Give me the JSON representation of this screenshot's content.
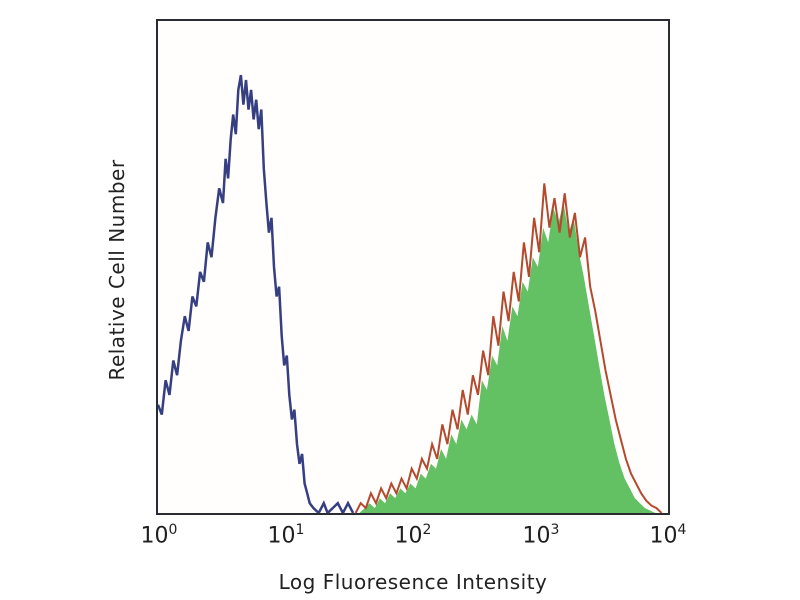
{
  "chart_data": {
    "type": "area",
    "title": "",
    "xlabel": "Log Fluoresence Intensity",
    "ylabel": "Relative Cell Number",
    "x_scale": "log",
    "x_ticks": [
      "10^0",
      "10^1",
      "10^2",
      "10^3",
      "10^4"
    ],
    "x_tick_base": "10",
    "x_tick_exponents": [
      "0",
      "1",
      "2",
      "3",
      "4"
    ],
    "xlim_log10": [
      0,
      4
    ],
    "ylim_fraction": [
      0,
      1
    ],
    "grid": false,
    "legend": "none",
    "series": [
      {
        "name": "stained-sample-fill",
        "style": "area",
        "color": "#63c063",
        "stroke_width": 0,
        "x_log": [
          1.58,
          1.62,
          1.66,
          1.7,
          1.74,
          1.78,
          1.82,
          1.86,
          1.9,
          1.94,
          1.98,
          2.02,
          2.06,
          2.1,
          2.14,
          2.18,
          2.22,
          2.26,
          2.3,
          2.34,
          2.38,
          2.42,
          2.46,
          2.5,
          2.54,
          2.58,
          2.62,
          2.66,
          2.7,
          2.74,
          2.78,
          2.82,
          2.86,
          2.9,
          2.94,
          2.98,
          3.02,
          3.06,
          3.1,
          3.14,
          3.18,
          3.22,
          3.26,
          3.3,
          3.34,
          3.38,
          3.42,
          3.46,
          3.5,
          3.54,
          3.58,
          3.62,
          3.66,
          3.7,
          3.74,
          3.78,
          3.82,
          3.86,
          3.9
        ],
        "y_frac": [
          0.0,
          0.01,
          0.02,
          0.01,
          0.03,
          0.02,
          0.04,
          0.03,
          0.05,
          0.04,
          0.06,
          0.05,
          0.08,
          0.07,
          0.1,
          0.09,
          0.13,
          0.11,
          0.16,
          0.14,
          0.19,
          0.17,
          0.2,
          0.18,
          0.27,
          0.25,
          0.32,
          0.3,
          0.38,
          0.35,
          0.42,
          0.4,
          0.47,
          0.45,
          0.52,
          0.5,
          0.58,
          0.55,
          0.62,
          0.59,
          0.63,
          0.57,
          0.6,
          0.53,
          0.48,
          0.42,
          0.36,
          0.3,
          0.24,
          0.19,
          0.14,
          0.1,
          0.07,
          0.05,
          0.03,
          0.02,
          0.01,
          0.005,
          0.0
        ]
      },
      {
        "name": "stained-sample-outline",
        "style": "line",
        "color": "#b34a2e",
        "stroke_width": 2,
        "x_log": [
          1.55,
          1.59,
          1.63,
          1.67,
          1.71,
          1.75,
          1.79,
          1.83,
          1.87,
          1.91,
          1.95,
          1.99,
          2.03,
          2.07,
          2.11,
          2.15,
          2.19,
          2.23,
          2.27,
          2.31,
          2.35,
          2.39,
          2.43,
          2.47,
          2.51,
          2.55,
          2.59,
          2.63,
          2.67,
          2.71,
          2.75,
          2.79,
          2.83,
          2.87,
          2.91,
          2.95,
          2.99,
          3.03,
          3.07,
          3.11,
          3.15,
          3.19,
          3.23,
          3.27,
          3.31,
          3.35,
          3.39,
          3.43,
          3.47,
          3.51,
          3.55,
          3.59,
          3.63,
          3.67,
          3.71,
          3.75,
          3.79,
          3.83,
          3.87,
          3.91,
          3.95
        ],
        "y_frac": [
          0.0,
          0.02,
          0.01,
          0.04,
          0.02,
          0.05,
          0.03,
          0.06,
          0.04,
          0.07,
          0.05,
          0.09,
          0.07,
          0.11,
          0.09,
          0.14,
          0.11,
          0.18,
          0.14,
          0.21,
          0.17,
          0.25,
          0.2,
          0.28,
          0.24,
          0.33,
          0.28,
          0.4,
          0.34,
          0.45,
          0.39,
          0.49,
          0.43,
          0.55,
          0.48,
          0.6,
          0.53,
          0.67,
          0.58,
          0.64,
          0.57,
          0.65,
          0.56,
          0.61,
          0.52,
          0.56,
          0.46,
          0.41,
          0.35,
          0.29,
          0.24,
          0.19,
          0.15,
          0.11,
          0.08,
          0.06,
          0.04,
          0.025,
          0.015,
          0.01,
          0.0
        ]
      },
      {
        "name": "unstained-control-line",
        "style": "line",
        "color": "#353f82",
        "stroke_width": 2.5,
        "x_log": [
          0.0,
          0.03,
          0.06,
          0.09,
          0.12,
          0.15,
          0.18,
          0.21,
          0.24,
          0.27,
          0.3,
          0.33,
          0.36,
          0.39,
          0.42,
          0.45,
          0.48,
          0.51,
          0.53,
          0.55,
          0.57,
          0.59,
          0.61,
          0.63,
          0.65,
          0.67,
          0.69,
          0.71,
          0.73,
          0.75,
          0.77,
          0.79,
          0.81,
          0.83,
          0.85,
          0.87,
          0.89,
          0.91,
          0.93,
          0.95,
          0.97,
          0.99,
          1.01,
          1.03,
          1.05,
          1.07,
          1.09,
          1.11,
          1.13,
          1.15,
          1.17,
          1.19,
          1.22,
          1.26,
          1.3,
          1.33,
          1.37,
          1.41,
          1.45,
          1.49,
          1.53
        ],
        "y_frac": [
          0.22,
          0.2,
          0.27,
          0.24,
          0.31,
          0.28,
          0.35,
          0.4,
          0.37,
          0.44,
          0.42,
          0.49,
          0.47,
          0.55,
          0.52,
          0.6,
          0.66,
          0.63,
          0.72,
          0.68,
          0.76,
          0.81,
          0.77,
          0.86,
          0.89,
          0.83,
          0.88,
          0.82,
          0.86,
          0.8,
          0.84,
          0.78,
          0.82,
          0.7,
          0.63,
          0.57,
          0.6,
          0.5,
          0.44,
          0.46,
          0.36,
          0.3,
          0.32,
          0.24,
          0.19,
          0.21,
          0.14,
          0.1,
          0.12,
          0.06,
          0.04,
          0.02,
          0.01,
          0.0,
          0.02,
          0.0,
          0.01,
          0.02,
          0.0,
          0.02,
          0.0
        ]
      }
    ]
  },
  "colors": {
    "plot_border": "#2b2b33",
    "plot_background": "#fffefc",
    "page_background": "#ffffff",
    "text": "#1c1c1c",
    "control_line": "#353f82",
    "stained_fill": "#63c063",
    "stained_outline": "#b34a2e"
  }
}
